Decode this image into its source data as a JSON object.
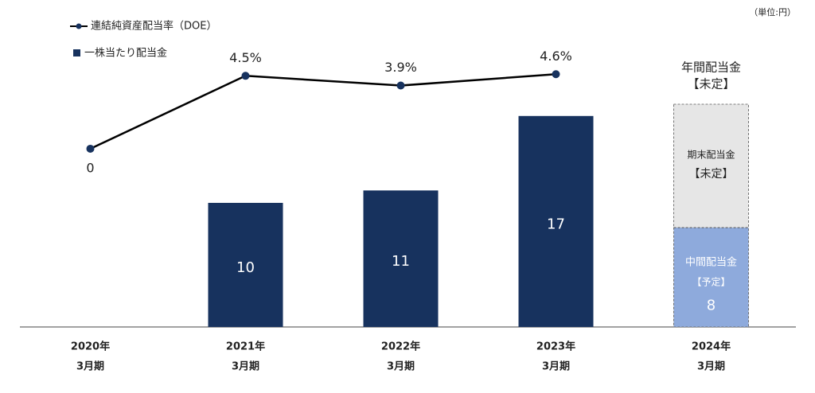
{
  "chart_data": {
    "type": "bar_line",
    "unit": "（単位:円）",
    "categories": [
      [
        "2020年",
        "3月期"
      ],
      [
        "2021年",
        "3月期"
      ],
      [
        "2022年",
        "3月期"
      ],
      [
        "2023年",
        "3月期"
      ],
      [
        "2024年",
        "3月期"
      ]
    ],
    "series": [
      {
        "name": "一株当たり配当金",
        "type": "bar",
        "color": "#17325e",
        "colors": [
          "#17325e",
          "#17325e",
          "#17325e",
          "#17325e",
          "#8eaadc"
        ],
        "values": [
          null,
          10,
          11,
          17,
          8
        ]
      },
      {
        "name": "連結純資産配当率（DOE）",
        "type": "line",
        "axis": "y2",
        "color": "#000000",
        "marker_color": "#17325e",
        "values": [
          0,
          4.5,
          3.9,
          4.6,
          null
        ],
        "value_labels": [
          "0",
          "4.5%",
          "3.9%",
          "4.6%",
          null
        ]
      }
    ],
    "annual_note": [
      "年間配当金",
      "【未定】"
    ],
    "pending_box": [
      "期末配当金",
      "【未定】"
    ],
    "interim_note": [
      "中間配当金",
      "【予定】"
    ],
    "ylim": [
      0,
      22
    ],
    "y2lim": [
      -11,
      5.85
    ]
  }
}
